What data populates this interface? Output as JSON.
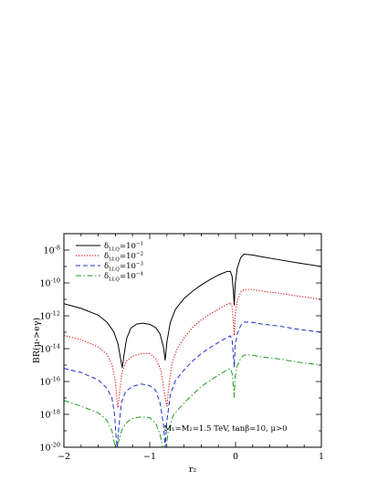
{
  "chart_data": {
    "type": "line",
    "title": "",
    "xlabel": "r₂",
    "ylabel": "BR(μ->eγ)",
    "xlim": [
      -2,
      1
    ],
    "ylim": [
      1e-20,
      1e-07
    ],
    "yscale": "log",
    "x_ticks": [
      -2,
      -1,
      0,
      1
    ],
    "x_tick_labels": [
      "−2",
      "−1",
      "0",
      "1"
    ],
    "y_ticks": [
      -8,
      -10,
      -12,
      -14,
      -16,
      -18,
      -20
    ],
    "y_tick_labels": [
      "10",
      "10",
      "10",
      "10",
      "10",
      "10",
      "10"
    ],
    "y_tick_exponents": [
      "-8",
      "-10",
      "-12",
      "-14",
      "-16",
      "-18",
      "-20"
    ],
    "grid": false,
    "legend_position": "top-left",
    "annotation": "M₁=M₂=1.5 TeV, tanβ=10, μ>0",
    "series": [
      {
        "name": "δLLQ=10⁻¹",
        "name_base": "δ",
        "name_sub": "LLQ",
        "name_eq": "=10",
        "name_sup": "−1",
        "color": "#000000",
        "dash": "solid",
        "log_points": [
          [
            -2.0,
            -11.26
          ],
          [
            -1.8,
            -11.55
          ],
          [
            -1.6,
            -11.96
          ],
          [
            -1.5,
            -12.38
          ],
          [
            -1.42,
            -12.96
          ],
          [
            -1.37,
            -13.7
          ],
          [
            -1.34,
            -14.6
          ],
          [
            -1.32,
            -15.15
          ],
          [
            -1.3,
            -14.4
          ],
          [
            -1.27,
            -13.4
          ],
          [
            -1.22,
            -12.75
          ],
          [
            -1.15,
            -12.5
          ],
          [
            -1.08,
            -12.45
          ],
          [
            -1.0,
            -12.52
          ],
          [
            -0.93,
            -12.72
          ],
          [
            -0.88,
            -13.1
          ],
          [
            -0.84,
            -13.9
          ],
          [
            -0.82,
            -14.7
          ],
          [
            -0.8,
            -13.6
          ],
          [
            -0.76,
            -12.4
          ],
          [
            -0.7,
            -11.6
          ],
          [
            -0.6,
            -10.95
          ],
          [
            -0.5,
            -10.5
          ],
          [
            -0.4,
            -10.12
          ],
          [
            -0.3,
            -9.8
          ],
          [
            -0.2,
            -9.52
          ],
          [
            -0.1,
            -9.3
          ],
          [
            -0.06,
            -9.3
          ],
          [
            -0.04,
            -9.6
          ],
          [
            -0.025,
            -10.5
          ],
          [
            -0.015,
            -11.35
          ],
          [
            -0.005,
            -10.1
          ],
          [
            0.02,
            -9.1
          ],
          [
            0.06,
            -8.45
          ],
          [
            0.1,
            -8.25
          ],
          [
            0.2,
            -8.3
          ],
          [
            0.3,
            -8.4
          ],
          [
            0.5,
            -8.58
          ],
          [
            0.7,
            -8.76
          ],
          [
            1.0,
            -9.0
          ]
        ]
      },
      {
        "name": "δLLQ=10⁻²",
        "name_base": "δ",
        "name_sub": "LLQ",
        "name_eq": "=10",
        "name_sup": "−2",
        "color": "#e41a1c",
        "dash": "dotted",
        "log_points": [
          [
            -2.0,
            -13.2
          ],
          [
            -1.8,
            -13.45
          ],
          [
            -1.6,
            -13.9
          ],
          [
            -1.5,
            -14.35
          ],
          [
            -1.44,
            -14.95
          ],
          [
            -1.4,
            -16.0
          ],
          [
            -1.38,
            -17.3
          ],
          [
            -1.37,
            -17.6
          ],
          [
            -1.35,
            -16.6
          ],
          [
            -1.32,
            -15.4
          ],
          [
            -1.27,
            -14.75
          ],
          [
            -1.2,
            -14.45
          ],
          [
            -1.1,
            -14.3
          ],
          [
            -1.0,
            -14.3
          ],
          [
            -0.93,
            -14.6
          ],
          [
            -0.87,
            -15.3
          ],
          [
            -0.82,
            -17.0
          ],
          [
            -0.8,
            -17.5
          ],
          [
            -0.78,
            -16.4
          ],
          [
            -0.74,
            -14.9
          ],
          [
            -0.68,
            -14.0
          ],
          [
            -0.6,
            -13.35
          ],
          [
            -0.5,
            -12.7
          ],
          [
            -0.4,
            -12.25
          ],
          [
            -0.3,
            -11.9
          ],
          [
            -0.2,
            -11.6
          ],
          [
            -0.1,
            -11.3
          ],
          [
            -0.06,
            -11.2
          ],
          [
            -0.04,
            -11.45
          ],
          [
            -0.025,
            -12.4
          ],
          [
            -0.015,
            -13.2
          ],
          [
            -0.005,
            -12.0
          ],
          [
            0.02,
            -11.1
          ],
          [
            0.06,
            -10.55
          ],
          [
            0.1,
            -10.4
          ],
          [
            0.2,
            -10.4
          ],
          [
            0.3,
            -10.5
          ],
          [
            0.5,
            -10.62
          ],
          [
            0.7,
            -10.78
          ],
          [
            1.0,
            -11.0
          ]
        ]
      },
      {
        "name": "δLLQ=10⁻³",
        "name_base": "δ",
        "name_sub": "LLQ",
        "name_eq": "=10",
        "name_sup": "−3",
        "color": "#1f2fd0",
        "dash": "dashed",
        "log_points": [
          [
            -2.0,
            -15.2
          ],
          [
            -1.8,
            -15.45
          ],
          [
            -1.6,
            -15.9
          ],
          [
            -1.5,
            -16.4
          ],
          [
            -1.44,
            -17.0
          ],
          [
            -1.41,
            -18.0
          ],
          [
            -1.39,
            -19.5
          ],
          [
            -1.38,
            -20.0
          ],
          [
            -1.36,
            -18.8
          ],
          [
            -1.33,
            -17.3
          ],
          [
            -1.28,
            -16.6
          ],
          [
            -1.2,
            -16.3
          ],
          [
            -1.1,
            -16.15
          ],
          [
            -1.0,
            -16.25
          ],
          [
            -0.93,
            -16.55
          ],
          [
            -0.88,
            -17.3
          ],
          [
            -0.84,
            -18.6
          ],
          [
            -0.82,
            -20.0
          ],
          [
            -0.8,
            -18.4
          ],
          [
            -0.76,
            -16.8
          ],
          [
            -0.7,
            -15.95
          ],
          [
            -0.6,
            -15.3
          ],
          [
            -0.5,
            -14.75
          ],
          [
            -0.4,
            -14.3
          ],
          [
            -0.3,
            -13.95
          ],
          [
            -0.2,
            -13.62
          ],
          [
            -0.1,
            -13.32
          ],
          [
            -0.06,
            -13.22
          ],
          [
            -0.04,
            -13.5
          ],
          [
            -0.025,
            -14.4
          ],
          [
            -0.015,
            -15.1
          ],
          [
            -0.005,
            -13.9
          ],
          [
            0.02,
            -13.1
          ],
          [
            0.06,
            -12.6
          ],
          [
            0.1,
            -12.38
          ],
          [
            0.2,
            -12.4
          ],
          [
            0.3,
            -12.5
          ],
          [
            0.5,
            -12.62
          ],
          [
            0.7,
            -12.8
          ],
          [
            1.0,
            -13.0
          ]
        ]
      },
      {
        "name": "δLLQ=10⁻⁴",
        "name_base": "δ",
        "name_sub": "LLQ",
        "name_eq": "=10",
        "name_sup": "−4",
        "color": "#1e9a1e",
        "dash": "dashdot",
        "log_points": [
          [
            -2.0,
            -17.15
          ],
          [
            -1.8,
            -17.5
          ],
          [
            -1.6,
            -17.9
          ],
          [
            -1.5,
            -18.35
          ],
          [
            -1.44,
            -19.0
          ],
          [
            -1.41,
            -19.8
          ],
          [
            -1.39,
            -20.0
          ],
          [
            -1.36,
            -19.6
          ],
          [
            -1.32,
            -18.9
          ],
          [
            -1.26,
            -18.45
          ],
          [
            -1.2,
            -18.25
          ],
          [
            -1.1,
            -18.15
          ],
          [
            -1.0,
            -18.2
          ],
          [
            -0.93,
            -18.55
          ],
          [
            -0.88,
            -19.2
          ],
          [
            -0.85,
            -20.0
          ],
          [
            -0.81,
            -20.0
          ],
          [
            -0.78,
            -18.9
          ],
          [
            -0.72,
            -18.0
          ],
          [
            -0.6,
            -17.3
          ],
          [
            -0.5,
            -16.8
          ],
          [
            -0.4,
            -16.3
          ],
          [
            -0.3,
            -15.95
          ],
          [
            -0.2,
            -15.62
          ],
          [
            -0.1,
            -15.3
          ],
          [
            -0.06,
            -15.22
          ],
          [
            -0.04,
            -15.5
          ],
          [
            -0.025,
            -16.3
          ],
          [
            -0.015,
            -16.95
          ],
          [
            -0.005,
            -15.7
          ],
          [
            0.02,
            -15.05
          ],
          [
            0.06,
            -14.6
          ],
          [
            0.1,
            -14.38
          ],
          [
            0.2,
            -14.4
          ],
          [
            0.3,
            -14.5
          ],
          [
            0.5,
            -14.62
          ],
          [
            0.7,
            -14.8
          ],
          [
            1.0,
            -15.0
          ]
        ]
      }
    ]
  }
}
